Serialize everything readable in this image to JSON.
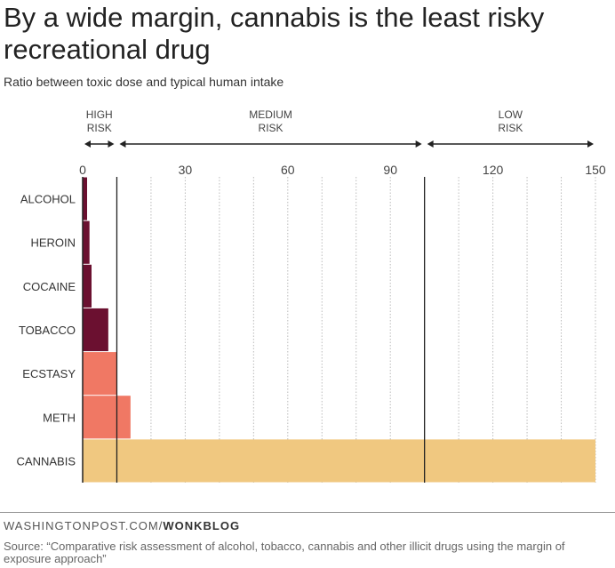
{
  "chart_data": {
    "type": "bar",
    "orientation": "horizontal",
    "title": "By a wide margin, cannabis is the least risky recreational drug",
    "subtitle": "Ratio between toxic dose and typical human intake",
    "categories": [
      "ALCOHOL",
      "HEROIN",
      "COCAINE",
      "TOBACCO",
      "ECSTASY",
      "METH",
      "CANNABIS"
    ],
    "values": [
      1.3,
      2,
      2.6,
      7.5,
      10,
      14,
      150
    ],
    "bar_colors": [
      "#6b1030",
      "#6b1030",
      "#6b1030",
      "#6b1030",
      "#f07864",
      "#f07864",
      "#f0c880"
    ],
    "xlim": [
      0,
      150
    ],
    "xticks": [
      0,
      30,
      60,
      90,
      120,
      150
    ],
    "grid": "vertical dotted every 10",
    "thresholds": [
      10,
      100
    ],
    "risk_zones": [
      {
        "label_line1": "HIGH",
        "label_line2": "RISK",
        "from": 0,
        "to": 10
      },
      {
        "label_line1": "MEDIUM",
        "label_line2": "RISK",
        "from": 10,
        "to": 100
      },
      {
        "label_line1": "LOW",
        "label_line2": "RISK",
        "from": 100,
        "to": 150
      }
    ]
  },
  "footer": {
    "credit_site": "WASHINGTONPOST.COM/",
    "credit_section": "WONKBLOG",
    "source": "Source: “Comparative risk assessment of alcohol, tobacco, cannabis and other illicit drugs using the margin of exposure approach”"
  }
}
